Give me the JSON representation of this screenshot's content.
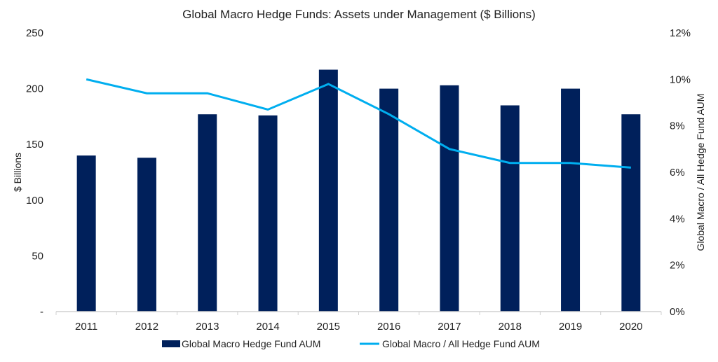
{
  "chart_data": {
    "type": "bar",
    "title": "Global Macro Hedge Funds: Assets under Management ($ Billions)",
    "categories": [
      "2011",
      "2012",
      "2013",
      "2014",
      "2015",
      "2016",
      "2017",
      "2018",
      "2019",
      "2020"
    ],
    "series": [
      {
        "name": "Global Macro Hedge Fund AUM",
        "type": "bar",
        "axis": "left",
        "color": "#00205B",
        "values": [
          140,
          138,
          177,
          176,
          217,
          200,
          203,
          185,
          200,
          177
        ]
      },
      {
        "name": "Global Macro / All Hedge Fund AUM",
        "type": "line",
        "axis": "right",
        "color": "#00AEEF",
        "values": [
          10.0,
          9.4,
          9.4,
          8.7,
          9.8,
          8.5,
          7.0,
          6.4,
          6.4,
          6.2
        ]
      }
    ],
    "ylabel": "$ Billions",
    "ylim": [
      0,
      250
    ],
    "yticks": [
      "-",
      "50",
      "100",
      "150",
      "200",
      "250"
    ],
    "y2label": "Global Macro / All Hedge Fund AUM",
    "y2lim": [
      0,
      12
    ],
    "y2ticks": [
      "0%",
      "2%",
      "4%",
      "6%",
      "8%",
      "10%",
      "12%"
    ],
    "grid": false,
    "legend": "bottom"
  }
}
